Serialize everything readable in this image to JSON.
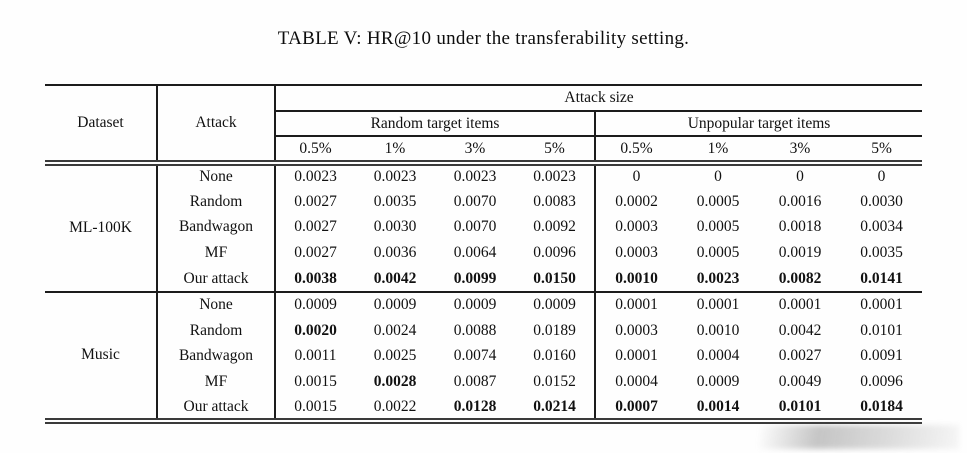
{
  "title": "TABLE V: HR@10 under the transferability setting.",
  "colors": {
    "ink": "#111111",
    "rule": "#1c1c1c",
    "double_rule": "#3a3a3a"
  },
  "table": {
    "header": {
      "dataset": "Dataset",
      "attack": "Attack",
      "attack_size": "Attack size",
      "groups": [
        {
          "label": "Random target items",
          "sizes": [
            "0.5%",
            "1%",
            "3%",
            "5%"
          ]
        },
        {
          "label": "Unpopular target items",
          "sizes": [
            "0.5%",
            "1%",
            "3%",
            "5%"
          ]
        }
      ]
    },
    "sections": [
      {
        "dataset": "ML-100K",
        "rows": [
          {
            "attack": "None",
            "values": [
              "0.0023",
              "0.0023",
              "0.0023",
              "0.0023",
              "0",
              "0",
              "0",
              "0"
            ],
            "bold": [
              0,
              0,
              0,
              0,
              0,
              0,
              0,
              0
            ]
          },
          {
            "attack": "Random",
            "values": [
              "0.0027",
              "0.0035",
              "0.0070",
              "0.0083",
              "0.0002",
              "0.0005",
              "0.0016",
              "0.0030"
            ],
            "bold": [
              0,
              0,
              0,
              0,
              0,
              0,
              0,
              0
            ]
          },
          {
            "attack": "Bandwagon",
            "values": [
              "0.0027",
              "0.0030",
              "0.0070",
              "0.0092",
              "0.0003",
              "0.0005",
              "0.0018",
              "0.0034"
            ],
            "bold": [
              0,
              0,
              0,
              0,
              0,
              0,
              0,
              0
            ]
          },
          {
            "attack": "MF",
            "values": [
              "0.0027",
              "0.0036",
              "0.0064",
              "0.0096",
              "0.0003",
              "0.0005",
              "0.0019",
              "0.0035"
            ],
            "bold": [
              0,
              0,
              0,
              0,
              0,
              0,
              0,
              0
            ]
          },
          {
            "attack": "Our attack",
            "values": [
              "0.0038",
              "0.0042",
              "0.0099",
              "0.0150",
              "0.0010",
              "0.0023",
              "0.0082",
              "0.0141"
            ],
            "bold": [
              1,
              1,
              1,
              1,
              1,
              1,
              1,
              1
            ]
          }
        ]
      },
      {
        "dataset": "Music",
        "rows": [
          {
            "attack": "None",
            "values": [
              "0.0009",
              "0.0009",
              "0.0009",
              "0.0009",
              "0.0001",
              "0.0001",
              "0.0001",
              "0.0001"
            ],
            "bold": [
              0,
              0,
              0,
              0,
              0,
              0,
              0,
              0
            ]
          },
          {
            "attack": "Random",
            "values": [
              "0.0020",
              "0.0024",
              "0.0088",
              "0.0189",
              "0.0003",
              "0.0010",
              "0.0042",
              "0.0101"
            ],
            "bold": [
              1,
              0,
              0,
              0,
              0,
              0,
              0,
              0
            ]
          },
          {
            "attack": "Bandwagon",
            "values": [
              "0.0011",
              "0.0025",
              "0.0074",
              "0.0160",
              "0.0001",
              "0.0004",
              "0.0027",
              "0.0091"
            ],
            "bold": [
              0,
              0,
              0,
              0,
              0,
              0,
              0,
              0
            ]
          },
          {
            "attack": "MF",
            "values": [
              "0.0015",
              "0.0028",
              "0.0087",
              "0.0152",
              "0.0004",
              "0.0009",
              "0.0049",
              "0.0096"
            ],
            "bold": [
              0,
              1,
              0,
              0,
              0,
              0,
              0,
              0
            ]
          },
          {
            "attack": "Our attack",
            "values": [
              "0.0015",
              "0.0022",
              "0.0128",
              "0.0214",
              "0.0007",
              "0.0014",
              "0.0101",
              "0.0184"
            ],
            "bold": [
              0,
              0,
              1,
              1,
              1,
              1,
              1,
              1
            ]
          }
        ]
      }
    ]
  }
}
